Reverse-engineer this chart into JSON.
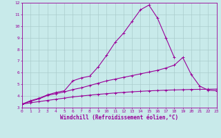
{
  "xlabel": "Windchill (Refroidissement éolien,°C)",
  "bg_color": "#c8eaea",
  "line_color": "#990099",
  "grid_color": "#aacccc",
  "xlim": [
    0,
    23
  ],
  "ylim": [
    3,
    12
  ],
  "yticks": [
    3,
    4,
    5,
    6,
    7,
    8,
    9,
    10,
    11,
    12
  ],
  "xticks": [
    0,
    1,
    2,
    3,
    4,
    5,
    6,
    7,
    8,
    9,
    10,
    11,
    12,
    13,
    14,
    15,
    16,
    17,
    18,
    19,
    20,
    21,
    22,
    23
  ],
  "line1_x": [
    0,
    1,
    2,
    3,
    4,
    5,
    6,
    7,
    8,
    9,
    10,
    11,
    12,
    13,
    14,
    15,
    16,
    17,
    18
  ],
  "line1_y": [
    3.3,
    3.6,
    3.8,
    4.1,
    4.3,
    4.45,
    5.3,
    5.55,
    5.7,
    6.5,
    7.5,
    8.6,
    9.4,
    10.4,
    11.4,
    11.8,
    10.7,
    9.0,
    7.3
  ],
  "line2_x": [
    0,
    1,
    2,
    3,
    4,
    5,
    6,
    7,
    8,
    9,
    10,
    11,
    12,
    13,
    14,
    15,
    16,
    17,
    18,
    19,
    20,
    21,
    22,
    23
  ],
  "line2_y": [
    3.3,
    3.55,
    3.75,
    4.05,
    4.2,
    4.35,
    4.55,
    4.7,
    4.9,
    5.1,
    5.3,
    5.45,
    5.6,
    5.75,
    5.9,
    6.05,
    6.2,
    6.4,
    6.65,
    7.3,
    5.85,
    4.85,
    4.5,
    4.45
  ],
  "line3_x": [
    0,
    1,
    2,
    3,
    4,
    5,
    6,
    7,
    8,
    9,
    10,
    11,
    12,
    13,
    14,
    15,
    16,
    17,
    18,
    19,
    20,
    21,
    22,
    23
  ],
  "line3_y": [
    3.3,
    3.42,
    3.52,
    3.62,
    3.72,
    3.82,
    3.92,
    4.0,
    4.07,
    4.14,
    4.2,
    4.26,
    4.31,
    4.36,
    4.4,
    4.44,
    4.47,
    4.5,
    4.52,
    4.54,
    4.56,
    4.57,
    4.58,
    4.59
  ],
  "markersize": 2.5,
  "linewidth": 0.8,
  "tick_fontsize": 4.5,
  "xlabel_fontsize": 5.5
}
